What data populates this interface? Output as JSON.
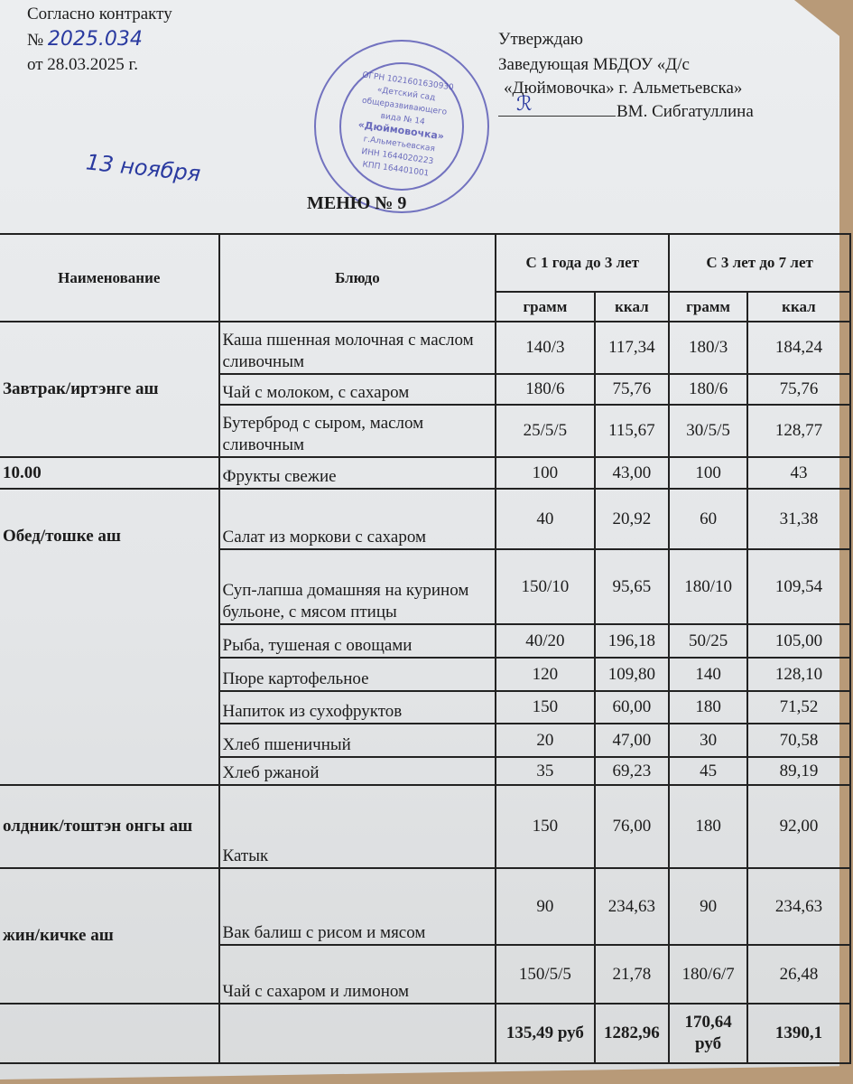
{
  "header": {
    "contract_label": "Согласно контракту",
    "number_prefix": "№",
    "number_handwritten": "2025.034",
    "date": "от 28.03.2025 г.",
    "approve": "Утверждаю",
    "position": "Заведующая  МБДОУ «Д/с",
    "org": "«Дюймовочка» г. Альметьевска»",
    "signature_line": "ВМ. Сибгатуллина",
    "handwritten_date": "13 ноября",
    "title": "МЕНЮ № 9"
  },
  "stamp": {
    "center_lines": [
      "ОГРН 1021601630930",
      "«Детский сад",
      "общеразвивающего",
      "вида № 14",
      "«Дюймовочка»",
      "г.Альметьевская",
      "ИНН 1644020223",
      "КПП 164401001"
    ],
    "color": "#4a4ab0"
  },
  "table": {
    "headers": {
      "name": "Наименование",
      "dish": "Блюдо",
      "group1": "С 1 года до 3 лет",
      "group2": "С 3 лет до 7 лет",
      "gram": "грамм",
      "kcal": "ккал"
    },
    "rows": [
      {
        "meal": "Завтрак/иртэнге аш",
        "dish": "Каша пшенная молочная с маслом сливочным",
        "g1": "140/3",
        "k1": "117,34",
        "g2": "180/3",
        "k2": "184,24"
      },
      {
        "meal": "",
        "dish": "Чай с молоком, с сахаром",
        "g1": "180/6",
        "k1": "75,76",
        "g2": "180/6",
        "k2": "75,76"
      },
      {
        "meal": "",
        "dish": "Бутерброд с сыром, маслом сливочным",
        "g1": "25/5/5",
        "k1": "115,67",
        "g2": "30/5/5",
        "k2": "128,77"
      },
      {
        "meal": "10.00",
        "dish": "Фрукты свежие",
        "g1": "100",
        "k1": "43,00",
        "g2": "100",
        "k2": "43"
      },
      {
        "meal": "Обед/тошке аш",
        "dish": "Салат из моркови с сахаром",
        "g1": "40",
        "k1": "20,92",
        "g2": "60",
        "k2": "31,38"
      },
      {
        "meal": "",
        "dish": "Суп-лапша домашняя на курином бульоне, с мясом птицы",
        "g1": "150/10",
        "k1": "95,65",
        "g2": "180/10",
        "k2": "109,54"
      },
      {
        "meal": "",
        "dish": "Рыба, тушеная с овощами",
        "g1": "40/20",
        "k1": "196,18",
        "g2": "50/25",
        "k2": "105,00"
      },
      {
        "meal": "",
        "dish": "Пюре картофельное",
        "g1": "120",
        "k1": "109,80",
        "g2": "140",
        "k2": "128,10"
      },
      {
        "meal": "",
        "dish": "Напиток из сухофруктов",
        "g1": "150",
        "k1": "60,00",
        "g2": "180",
        "k2": "71,52"
      },
      {
        "meal": "",
        "dish": "Хлеб пшеничный",
        "g1": "20",
        "k1": "47,00",
        "g2": "30",
        "k2": "70,58"
      },
      {
        "meal": "",
        "dish": "Хлеб ржаной",
        "g1": "35",
        "k1": "69,23",
        "g2": "45",
        "k2": "89,19"
      },
      {
        "meal": "олдник/тоштэн онгы аш",
        "dish": "Катык",
        "g1": "150",
        "k1": "76,00",
        "g2": "180",
        "k2": "92,00"
      },
      {
        "meal": "жин/кичке аш",
        "dish": "Вак балиш с рисом и мясом",
        "g1": "90",
        "k1": "234,63",
        "g2": "90",
        "k2": "234,63"
      },
      {
        "meal": "",
        "dish": "Чай с сахаром и лимоном",
        "g1": "150/5/5",
        "k1": "21,78",
        "g2": "180/6/7",
        "k2": "26,48"
      }
    ],
    "totals": {
      "g1": "135,49 руб",
      "k1": "1282,96",
      "g2": "170,64 руб",
      "k2": "1390,1"
    }
  }
}
